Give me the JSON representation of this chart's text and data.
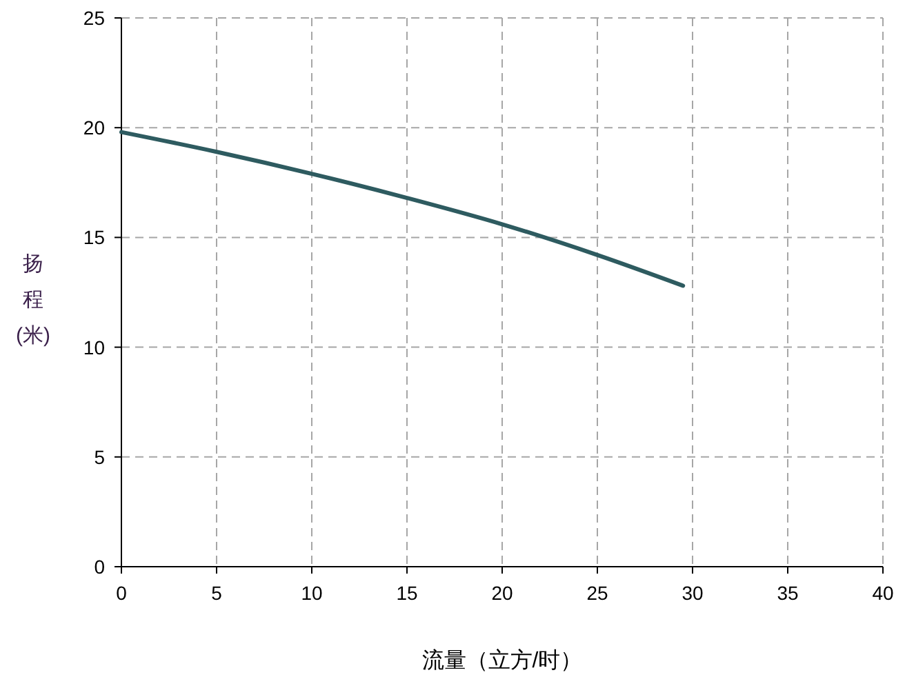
{
  "chart_data": {
    "type": "line",
    "xlabel": "流量（立方/时）",
    "ylabel": "扬程(米)",
    "x": [
      0,
      5,
      10,
      15,
      20,
      25,
      29.5
    ],
    "series": [
      {
        "color": "#2e5b60",
        "values": [
          19.8,
          18.9,
          17.9,
          16.8,
          15.6,
          14.2,
          12.8
        ]
      }
    ],
    "xlim": [
      0,
      40
    ],
    "xticks": [
      0,
      5,
      10,
      15,
      20,
      25,
      30,
      35,
      40
    ],
    "ylim": [
      0,
      25
    ],
    "yticks": [
      0,
      5,
      10,
      15,
      20,
      25
    ],
    "grid": true,
    "marker": "none",
    "line_style": "solid"
  }
}
